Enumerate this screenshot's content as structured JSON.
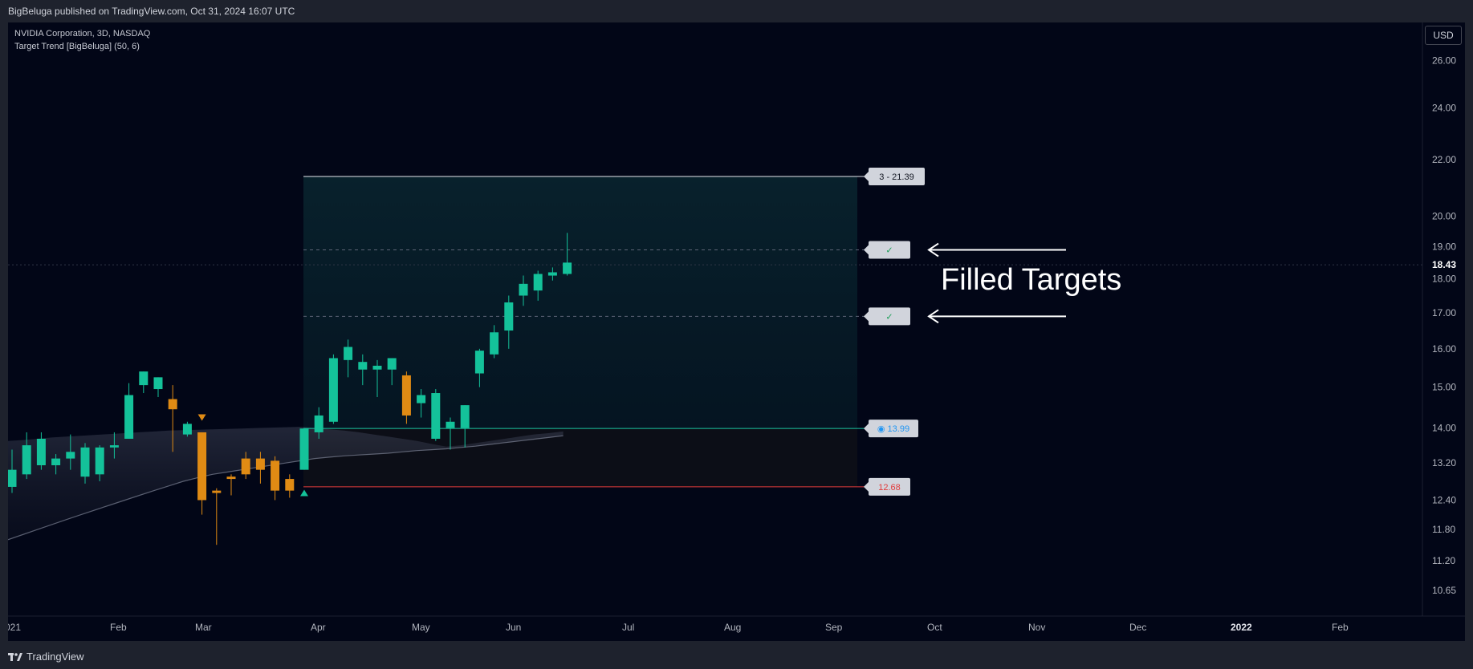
{
  "header": {
    "publisher_line": "BigBeluga published on TradingView.com, Oct 31, 2024 16:07 UTC"
  },
  "legend": {
    "symbol": "NVIDIA Corporation, 3D, NASDAQ",
    "indicator": "Target Trend [BigBeluga] (50, 6)"
  },
  "currency": "USD",
  "annotation": {
    "text": "Filled Targets"
  },
  "footer": {
    "brand": "TradingView"
  },
  "colors": {
    "bull": "#14c29a",
    "bear": "#e08b14",
    "background": "#020617",
    "target_line": "#e6e8ee",
    "stop_line": "#e23b3b",
    "entry_line": "#1bc4a3",
    "entry_label_text": "#2196f3",
    "stop_label_text": "#e23b3b"
  },
  "chart_data": {
    "type": "candlestick",
    "y_scale": "log",
    "ylim": [
      10.2,
      27.5
    ],
    "y_ticks": [
      "26.00",
      "24.00",
      "22.00",
      "20.00",
      "19.00",
      "18.00",
      "17.00",
      "16.00",
      "15.00",
      "14.00",
      "13.20",
      "12.40",
      "11.80",
      "11.20",
      "10.65"
    ],
    "last_price": "18.43",
    "x_ticks": [
      "021",
      "Feb",
      "Mar",
      "Apr",
      "May",
      "Jun",
      "Jul",
      "Aug",
      "Sep",
      "Oct",
      "Nov",
      "Dec",
      "2022",
      "Feb"
    ],
    "candles": [
      {
        "o": 12.68,
        "h": 13.5,
        "l": 12.55,
        "c": 13.05,
        "dir": "up"
      },
      {
        "o": 12.95,
        "h": 13.9,
        "l": 12.85,
        "c": 13.6,
        "dir": "up"
      },
      {
        "o": 13.15,
        "h": 13.9,
        "l": 13.05,
        "c": 13.75,
        "dir": "up"
      },
      {
        "o": 13.15,
        "h": 13.4,
        "l": 12.95,
        "c": 13.3,
        "dir": "up"
      },
      {
        "o": 13.3,
        "h": 13.85,
        "l": 13.05,
        "c": 13.45,
        "dir": "up"
      },
      {
        "o": 12.9,
        "h": 13.65,
        "l": 12.75,
        "c": 13.55,
        "dir": "up"
      },
      {
        "o": 12.95,
        "h": 13.6,
        "l": 12.8,
        "c": 13.55,
        "dir": "up"
      },
      {
        "o": 13.55,
        "h": 13.9,
        "l": 13.3,
        "c": 13.6,
        "dir": "up"
      },
      {
        "o": 13.75,
        "h": 15.1,
        "l": 13.75,
        "c": 14.8,
        "dir": "up"
      },
      {
        "o": 15.05,
        "h": 15.4,
        "l": 14.85,
        "c": 15.4,
        "dir": "up"
      },
      {
        "o": 14.95,
        "h": 15.25,
        "l": 14.75,
        "c": 15.25,
        "dir": "up"
      },
      {
        "o": 14.7,
        "h": 15.05,
        "l": 13.45,
        "c": 14.45,
        "dir": "down"
      },
      {
        "o": 13.85,
        "h": 14.15,
        "l": 13.8,
        "c": 14.1,
        "dir": "up"
      },
      {
        "o": 13.9,
        "h": 13.9,
        "l": 12.1,
        "c": 12.4,
        "dir": "down"
      },
      {
        "o": 12.55,
        "h": 12.65,
        "l": 11.5,
        "c": 12.6,
        "dir": "down"
      },
      {
        "o": 12.85,
        "h": 12.95,
        "l": 12.5,
        "c": 12.9,
        "dir": "down"
      },
      {
        "o": 13.3,
        "h": 13.45,
        "l": 12.85,
        "c": 12.95,
        "dir": "down"
      },
      {
        "o": 13.3,
        "h": 13.45,
        "l": 12.75,
        "c": 13.05,
        "dir": "down"
      },
      {
        "o": 13.25,
        "h": 13.35,
        "l": 12.4,
        "c": 12.6,
        "dir": "down"
      },
      {
        "o": 12.85,
        "h": 12.95,
        "l": 12.45,
        "c": 12.6,
        "dir": "down"
      },
      {
        "o": 13.05,
        "h": 14.0,
        "l": 13.05,
        "c": 13.99,
        "dir": "up"
      },
      {
        "o": 13.9,
        "h": 14.5,
        "l": 13.75,
        "c": 14.3,
        "dir": "up"
      },
      {
        "o": 14.15,
        "h": 15.85,
        "l": 14.1,
        "c": 15.75,
        "dir": "up"
      },
      {
        "o": 15.7,
        "h": 16.25,
        "l": 15.25,
        "c": 16.05,
        "dir": "up"
      },
      {
        "o": 15.45,
        "h": 15.85,
        "l": 15.05,
        "c": 15.65,
        "dir": "up"
      },
      {
        "o": 15.45,
        "h": 15.7,
        "l": 14.75,
        "c": 15.55,
        "dir": "up"
      },
      {
        "o": 15.45,
        "h": 15.75,
        "l": 15.05,
        "c": 15.75,
        "dir": "up"
      },
      {
        "o": 15.3,
        "h": 15.4,
        "l": 14.1,
        "c": 14.3,
        "dir": "down"
      },
      {
        "o": 14.6,
        "h": 14.95,
        "l": 14.25,
        "c": 14.8,
        "dir": "up"
      },
      {
        "o": 13.75,
        "h": 14.95,
        "l": 13.7,
        "c": 14.85,
        "dir": "up"
      },
      {
        "o": 14.0,
        "h": 14.25,
        "l": 13.5,
        "c": 14.15,
        "dir": "up"
      },
      {
        "o": 14.0,
        "h": 14.55,
        "l": 13.55,
        "c": 14.55,
        "dir": "up"
      },
      {
        "o": 15.35,
        "h": 16.0,
        "l": 15.0,
        "c": 15.95,
        "dir": "up"
      },
      {
        "o": 15.85,
        "h": 16.65,
        "l": 15.75,
        "c": 16.45,
        "dir": "up"
      },
      {
        "o": 16.5,
        "h": 17.5,
        "l": 16.0,
        "c": 17.3,
        "dir": "up"
      },
      {
        "o": 17.5,
        "h": 18.1,
        "l": 17.2,
        "c": 17.85,
        "dir": "up"
      },
      {
        "o": 17.65,
        "h": 18.25,
        "l": 17.35,
        "c": 18.15,
        "dir": "up"
      },
      {
        "o": 18.1,
        "h": 18.35,
        "l": 17.95,
        "c": 18.2,
        "dir": "up"
      },
      {
        "o": 18.15,
        "h": 19.45,
        "l": 18.1,
        "c": 18.5,
        "dir": "up"
      }
    ],
    "trend_band": {
      "upper": [
        13.7,
        13.72,
        13.75,
        13.78,
        13.8,
        13.82,
        13.84,
        13.86,
        13.88,
        13.9,
        13.92,
        13.94,
        13.95,
        13.96,
        13.97,
        13.98,
        13.99,
        14.0,
        14.01,
        14.02,
        14.03,
        14.0,
        13.97,
        13.94,
        13.9,
        13.85,
        13.8,
        13.75,
        13.7,
        13.63,
        13.57,
        13.6,
        13.65,
        13.7,
        13.75,
        13.8,
        13.85,
        13.88,
        13.92
      ],
      "lower": [
        11.6,
        11.7,
        11.8,
        11.9,
        12.0,
        12.1,
        12.2,
        12.3,
        12.4,
        12.5,
        12.6,
        12.7,
        12.8,
        12.88,
        12.95,
        13.0,
        13.05,
        13.1,
        13.15,
        13.2,
        13.25,
        13.3,
        13.33,
        13.36,
        13.38,
        13.4,
        13.42,
        13.45,
        13.48,
        13.5,
        13.52,
        13.55,
        13.58,
        13.62,
        13.66,
        13.7,
        13.74,
        13.78,
        13.82
      ]
    },
    "levels": [
      {
        "label": "3 - 21.39",
        "value": 21.39,
        "role": "target"
      },
      {
        "label": "✓",
        "value": 18.9,
        "role": "filled-target"
      },
      {
        "label": "✓",
        "value": 16.9,
        "role": "filled-target"
      },
      {
        "label": "◉ 13.99",
        "value": 13.99,
        "role": "entry"
      },
      {
        "label": "12.68",
        "value": 12.68,
        "role": "stop"
      }
    ],
    "signals": [
      {
        "candle": 13,
        "kind": "bearish",
        "value": 14.25
      },
      {
        "candle": 20,
        "kind": "bullish",
        "value": 12.55
      }
    ]
  }
}
